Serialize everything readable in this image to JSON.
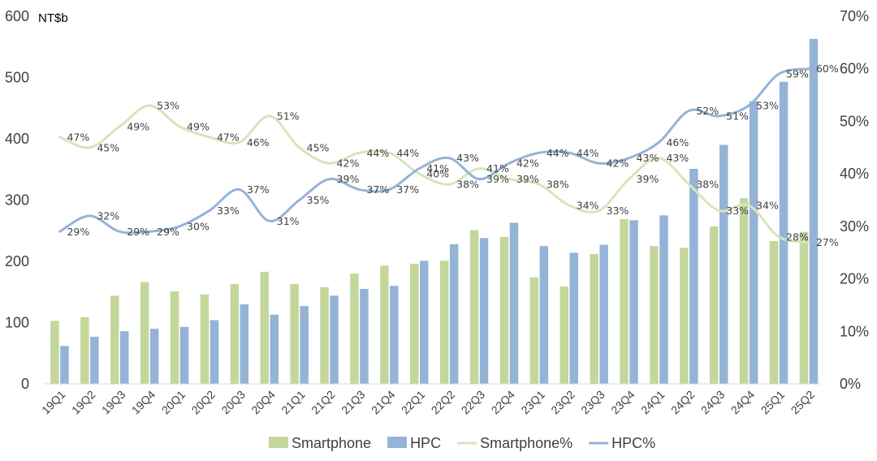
{
  "chart_data": {
    "type": "bar",
    "unit_label": "NT$b",
    "categories": [
      "19Q1",
      "19Q2",
      "19Q3",
      "19Q4",
      "20Q1",
      "20Q2",
      "20Q3",
      "20Q4",
      "21Q1",
      "21Q2",
      "21Q3",
      "21Q4",
      "22Q1",
      "22Q2",
      "22Q3",
      "22Q4",
      "23Q1",
      "23Q2",
      "23Q3",
      "23Q4",
      "24Q1",
      "24Q2",
      "24Q3",
      "24Q4",
      "25Q1",
      "25Q2"
    ],
    "ylim": [
      0,
      600
    ],
    "yticks": [
      "0",
      "100",
      "200",
      "300",
      "400",
      "500",
      "600"
    ],
    "y2lim": [
      0,
      0.7
    ],
    "y2ticks": [
      "0%",
      "10%",
      "20%",
      "30%",
      "40%",
      "50%",
      "60%",
      "70%"
    ],
    "legend_position": "bottom",
    "grid": false,
    "series": [
      {
        "name": "Smartphone",
        "kind": "bar",
        "axis": "left",
        "color": "#c4d79b",
        "values": [
          103,
          109,
          144,
          166,
          151,
          146,
          163,
          183,
          163,
          158,
          180,
          193,
          196,
          201,
          251,
          240,
          174,
          159,
          212,
          269,
          225,
          222,
          257,
          303,
          233,
          248
        ]
      },
      {
        "name": "HPC",
        "kind": "bar",
        "axis": "left",
        "color": "#95b3d7",
        "values": [
          62,
          77,
          86,
          90,
          93,
          104,
          130,
          113,
          127,
          144,
          155,
          160,
          201,
          228,
          238,
          263,
          225,
          214,
          227,
          267,
          275,
          351,
          390,
          461,
          493,
          563
        ]
      },
      {
        "name": "Smartphone%",
        "kind": "line",
        "axis": "right",
        "color": "#d8e4bc",
        "values": [
          0.47,
          0.45,
          0.49,
          0.53,
          0.49,
          0.47,
          0.46,
          0.51,
          0.45,
          0.42,
          0.44,
          0.44,
          0.4,
          0.38,
          0.41,
          0.39,
          0.38,
          0.34,
          0.33,
          0.39,
          0.43,
          0.38,
          0.33,
          0.34,
          0.28,
          0.27
        ],
        "labels": [
          "47%",
          "45%",
          "49%",
          "53%",
          "49%",
          "47%",
          "46%",
          "51%",
          "45%",
          "42%",
          "44%",
          "44%",
          "40%",
          "38%",
          "41%",
          "39%",
          "38%",
          "34%",
          "33%",
          "39%",
          "43%",
          "38%",
          "33%",
          "34%",
          "28%",
          "27%"
        ]
      },
      {
        "name": "HPC%",
        "kind": "line",
        "axis": "right",
        "color": "#95b3d7",
        "values": [
          0.29,
          0.32,
          0.29,
          0.29,
          0.3,
          0.33,
          0.37,
          0.31,
          0.35,
          0.39,
          0.37,
          0.37,
          0.41,
          0.43,
          0.39,
          0.42,
          0.44,
          0.44,
          0.42,
          0.43,
          0.46,
          0.52,
          0.51,
          0.53,
          0.59,
          0.6
        ],
        "labels": [
          "29%",
          "32%",
          "29%",
          "29%",
          "30%",
          "33%",
          "37%",
          "31%",
          "35%",
          "39%",
          "37%",
          "37%",
          "41%",
          "43%",
          "39%",
          "42%",
          "44%",
          "44%",
          "42%",
          "43%",
          "46%",
          "52%",
          "51%",
          "53%",
          "59%",
          "60%"
        ]
      }
    ]
  }
}
